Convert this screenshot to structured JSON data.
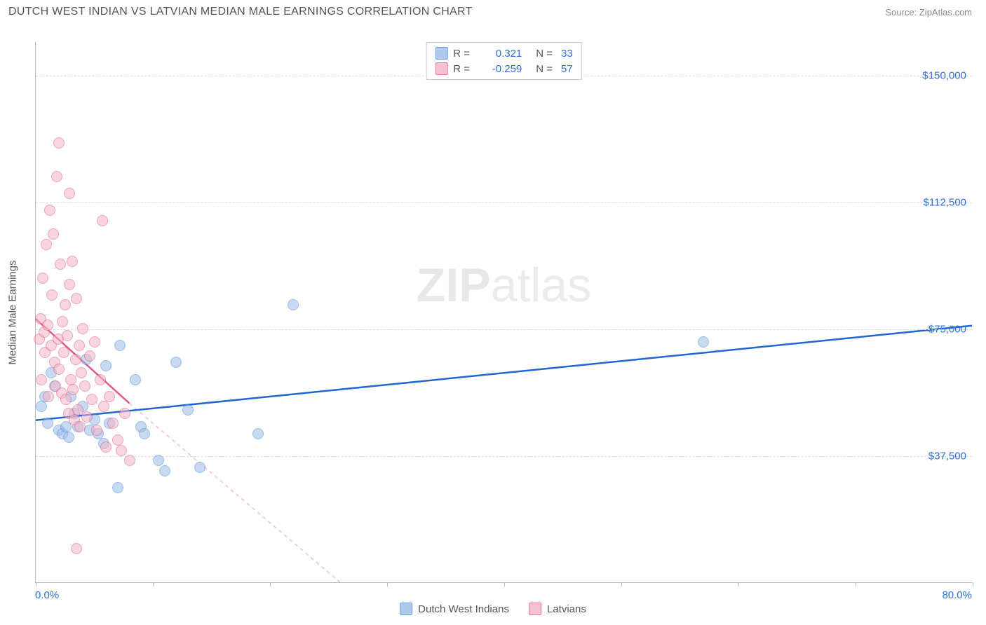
{
  "title": "DUTCH WEST INDIAN VS LATVIAN MEDIAN MALE EARNINGS CORRELATION CHART",
  "source": "Source: ZipAtlas.com",
  "watermark": {
    "left": "ZIP",
    "right": "atlas"
  },
  "y_axis_label": "Median Male Earnings",
  "chart": {
    "type": "scatter",
    "xlim": [
      0,
      80
    ],
    "ylim": [
      0,
      160000
    ],
    "x_tick_positions": [
      0,
      10,
      20,
      30,
      40,
      50,
      60,
      70,
      80
    ],
    "x_visible_labels": [
      {
        "x": 0,
        "label": "0.0%"
      },
      {
        "x": 80,
        "label": "80.0%"
      }
    ],
    "y_ticks": [
      {
        "y": 37500,
        "label": "$37,500"
      },
      {
        "y": 75000,
        "label": "$75,000"
      },
      {
        "y": 112500,
        "label": "$112,500"
      },
      {
        "y": 150000,
        "label": "$150,000"
      }
    ],
    "point_radius": 8,
    "point_border_width": 1,
    "series": [
      {
        "name": "Dutch West Indians",
        "fill_color": "#9bbce8",
        "fill_opacity": 0.55,
        "border_color": "#4a86d8",
        "r": 0.321,
        "n": 33,
        "trend": {
          "color": "#1f66d3",
          "width": 2.5,
          "dash": "none",
          "x1": 0,
          "y1": 48000,
          "x2": 80,
          "y2": 76000
        },
        "points": [
          [
            0.5,
            52000
          ],
          [
            0.8,
            55000
          ],
          [
            1.0,
            47000
          ],
          [
            1.3,
            62000
          ],
          [
            1.6,
            58000
          ],
          [
            2.0,
            45000
          ],
          [
            2.3,
            44000
          ],
          [
            2.6,
            46000
          ],
          [
            2.8,
            43000
          ],
          [
            3.0,
            55000
          ],
          [
            3.3,
            50000
          ],
          [
            3.6,
            46000
          ],
          [
            4.0,
            52000
          ],
          [
            4.3,
            66000
          ],
          [
            4.6,
            45000
          ],
          [
            5.0,
            48000
          ],
          [
            5.3,
            44000
          ],
          [
            5.8,
            41000
          ],
          [
            6.0,
            64000
          ],
          [
            6.3,
            47000
          ],
          [
            7.0,
            28000
          ],
          [
            7.2,
            70000
          ],
          [
            8.5,
            60000
          ],
          [
            9.0,
            46000
          ],
          [
            9.3,
            44000
          ],
          [
            10.5,
            36000
          ],
          [
            11.0,
            33000
          ],
          [
            12.0,
            65000
          ],
          [
            13.0,
            51000
          ],
          [
            14.0,
            34000
          ],
          [
            19.0,
            44000
          ],
          [
            22.0,
            82000
          ],
          [
            57.0,
            71000
          ]
        ]
      },
      {
        "name": "Latvians",
        "fill_color": "#f4b4c6",
        "fill_opacity": 0.55,
        "border_color": "#e05a84",
        "r": -0.259,
        "n": 57,
        "trend": {
          "color": "#e05a84",
          "width": 2.5,
          "dash": "none",
          "x1": 0,
          "y1": 78000,
          "x2": 8,
          "y2": 53000,
          "dash_extend": {
            "x2": 26,
            "y2": 0,
            "dash": "5,5",
            "opacity": 0.4
          }
        },
        "points": [
          [
            0.3,
            72000
          ],
          [
            0.4,
            78000
          ],
          [
            0.5,
            60000
          ],
          [
            0.6,
            90000
          ],
          [
            0.7,
            74000
          ],
          [
            0.8,
            68000
          ],
          [
            0.9,
            100000
          ],
          [
            1.0,
            76000
          ],
          [
            1.1,
            55000
          ],
          [
            1.2,
            110000
          ],
          [
            1.3,
            70000
          ],
          [
            1.4,
            85000
          ],
          [
            1.5,
            103000
          ],
          [
            1.6,
            65000
          ],
          [
            1.7,
            58000
          ],
          [
            1.8,
            120000
          ],
          [
            1.9,
            72000
          ],
          [
            2.0,
            63000
          ],
          [
            2.1,
            94000
          ],
          [
            2.2,
            56000
          ],
          [
            2.3,
            77000
          ],
          [
            2.4,
            68000
          ],
          [
            2.5,
            82000
          ],
          [
            2.6,
            54000
          ],
          [
            2.7,
            73000
          ],
          [
            2.8,
            50000
          ],
          [
            2.9,
            88000
          ],
          [
            3.0,
            60000
          ],
          [
            3.1,
            95000
          ],
          [
            3.2,
            57000
          ],
          [
            3.3,
            48000
          ],
          [
            3.4,
            66000
          ],
          [
            3.5,
            84000
          ],
          [
            3.6,
            51000
          ],
          [
            3.7,
            70000
          ],
          [
            3.8,
            46000
          ],
          [
            3.9,
            62000
          ],
          [
            4.0,
            75000
          ],
          [
            4.2,
            58000
          ],
          [
            4.4,
            49000
          ],
          [
            4.6,
            67000
          ],
          [
            4.8,
            54000
          ],
          [
            5.0,
            71000
          ],
          [
            5.2,
            45000
          ],
          [
            5.5,
            60000
          ],
          [
            5.8,
            52000
          ],
          [
            6.0,
            40000
          ],
          [
            6.3,
            55000
          ],
          [
            6.6,
            47000
          ],
          [
            7.0,
            42000
          ],
          [
            7.3,
            39000
          ],
          [
            7.6,
            50000
          ],
          [
            8.0,
            36000
          ],
          [
            5.7,
            107000
          ],
          [
            2.0,
            130000
          ],
          [
            2.9,
            115000
          ],
          [
            3.5,
            10000
          ]
        ]
      }
    ]
  }
}
